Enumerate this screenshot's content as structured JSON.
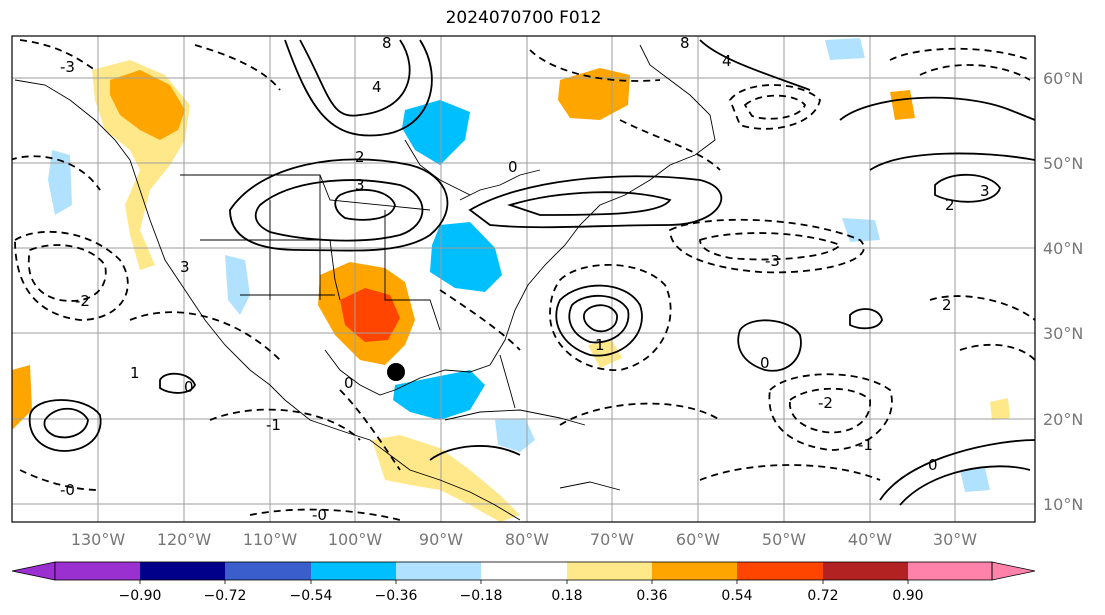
{
  "title": "2024070700 F012",
  "map": {
    "lon_labels": [
      "130°W",
      "120°W",
      "110°W",
      "100°W",
      "90°W",
      "80°W",
      "70°W",
      "60°W",
      "50°W",
      "40°W",
      "30°W"
    ],
    "lat_labels": [
      "60°N",
      "50°N",
      "40°N",
      "30°N",
      "20°N",
      "10°N"
    ],
    "contour_labels": [
      "8",
      "8",
      "4",
      "4",
      "3",
      "3",
      "2",
      "2",
      "1",
      "1",
      "0",
      "0",
      "0",
      "0",
      "-1",
      "-1",
      "-2",
      "-2",
      "-3",
      "-3",
      "3",
      "2",
      "0",
      "-0",
      "-0"
    ]
  },
  "colorbar": {
    "labels": [
      "−0.90",
      "−0.72",
      "−0.54",
      "−0.36",
      "−0.18",
      "0.18",
      "0.36",
      "0.54",
      "0.72",
      "0.90"
    ],
    "colors": [
      "#9b30d0",
      "#00008b",
      "#3a5fcd",
      "#00bfff",
      "#b0e2ff",
      "#ffffff",
      "#ffe88a",
      "#ffa500",
      "#ff4500",
      "#b22222",
      "#ff82ab"
    ]
  },
  "colors": {
    "frame": "#000000",
    "grid": "#9e9e9e",
    "tick_text": "#777777"
  },
  "marker": {
    "name": "black dot",
    "color": "#000000"
  }
}
